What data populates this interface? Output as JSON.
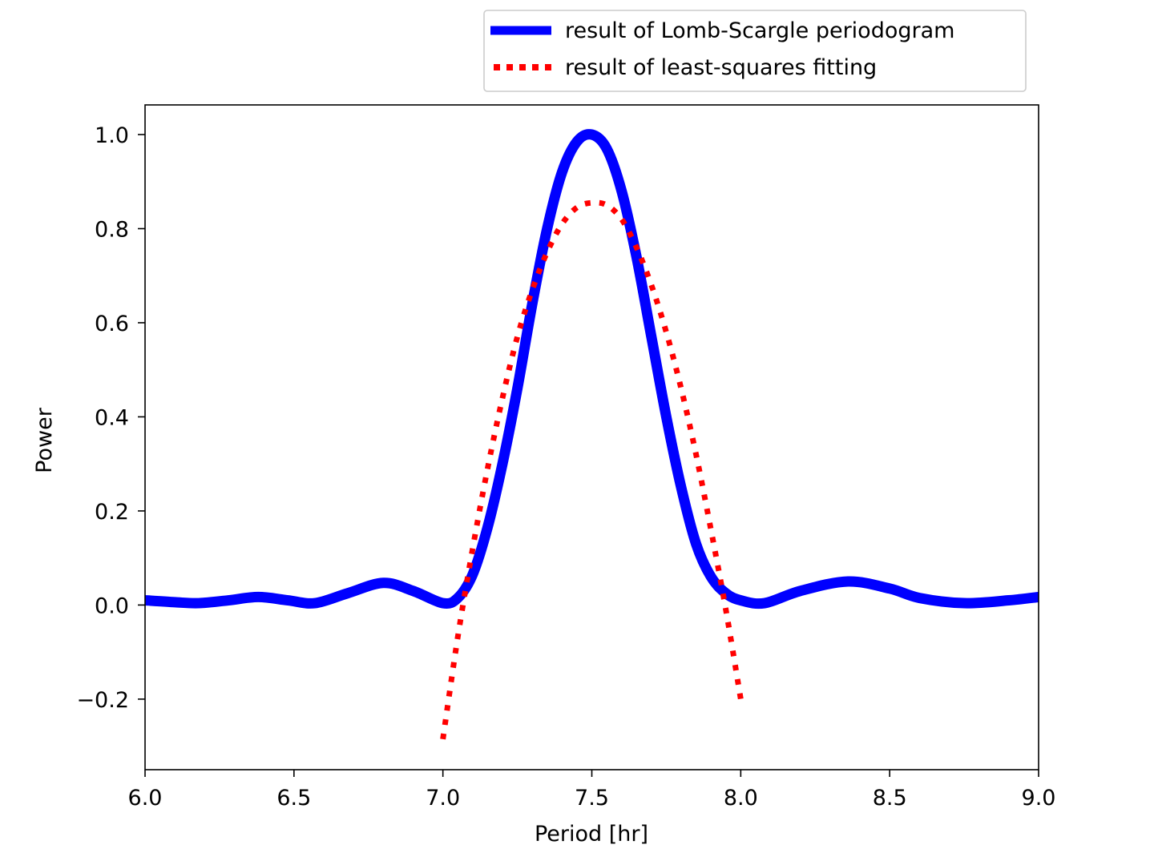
{
  "chart_data": {
    "type": "line",
    "title": "",
    "xlabel": "Period [hr]",
    "ylabel": "Power",
    "xlim": [
      6.0,
      9.0
    ],
    "ylim": [
      -0.35,
      1.063
    ],
    "grid": false,
    "legend_placement": "above plot, right",
    "x_ticks": [
      {
        "value": 6.0,
        "label": "6.0"
      },
      {
        "value": 6.5,
        "label": "6.5"
      },
      {
        "value": 7.0,
        "label": "7.0"
      },
      {
        "value": 7.5,
        "label": "7.5"
      },
      {
        "value": 8.0,
        "label": "8.0"
      },
      {
        "value": 8.5,
        "label": "8.5"
      },
      {
        "value": 9.0,
        "label": "9.0"
      }
    ],
    "y_ticks": [
      {
        "value": -0.2,
        "label": "−0.2"
      },
      {
        "value": 0.0,
        "label": "0.0"
      },
      {
        "value": 0.2,
        "label": "0.2"
      },
      {
        "value": 0.4,
        "label": "0.4"
      },
      {
        "value": 0.6,
        "label": "0.6"
      },
      {
        "value": 0.8,
        "label": "0.8"
      },
      {
        "value": 1.0,
        "label": "1.0"
      }
    ],
    "series": [
      {
        "name": "result of Lomb-Scargle periodogram",
        "color": "#0000ff",
        "style": "solid",
        "x": [
          6.0,
          6.1,
          6.18,
          6.28,
          6.38,
          6.48,
          6.57,
          6.68,
          6.8,
          6.9,
          7.0,
          7.05,
          7.1,
          7.15,
          7.2,
          7.25,
          7.3,
          7.35,
          7.4,
          7.45,
          7.5,
          7.55,
          7.6,
          7.65,
          7.7,
          7.75,
          7.8,
          7.85,
          7.9,
          7.95,
          8.0,
          8.08,
          8.2,
          8.36,
          8.5,
          8.6,
          8.75,
          8.9,
          9.0
        ],
        "y": [
          0.01,
          0.006,
          0.004,
          0.01,
          0.017,
          0.01,
          0.004,
          0.025,
          0.047,
          0.03,
          0.004,
          0.015,
          0.065,
          0.165,
          0.3,
          0.46,
          0.64,
          0.8,
          0.92,
          0.985,
          1.0,
          0.97,
          0.88,
          0.74,
          0.57,
          0.4,
          0.25,
          0.13,
          0.06,
          0.025,
          0.01,
          0.004,
          0.03,
          0.05,
          0.035,
          0.015,
          0.004,
          0.01,
          0.017
        ]
      },
      {
        "name": "result of least-squares fitting",
        "color": "#ff0000",
        "style": "dotted",
        "x": [
          7.0,
          7.05,
          7.1,
          7.15,
          7.2,
          7.25,
          7.3,
          7.35,
          7.4,
          7.45,
          7.5,
          7.55,
          7.6,
          7.65,
          7.7,
          7.75,
          7.8,
          7.85,
          7.9,
          7.95,
          8.0
        ],
        "y": [
          -0.285,
          -0.068,
          0.12,
          0.29,
          0.44,
          0.57,
          0.67,
          0.75,
          0.81,
          0.845,
          0.855,
          0.85,
          0.82,
          0.76,
          0.68,
          0.58,
          0.46,
          0.32,
          0.16,
          -0.01,
          -0.2
        ]
      }
    ]
  }
}
